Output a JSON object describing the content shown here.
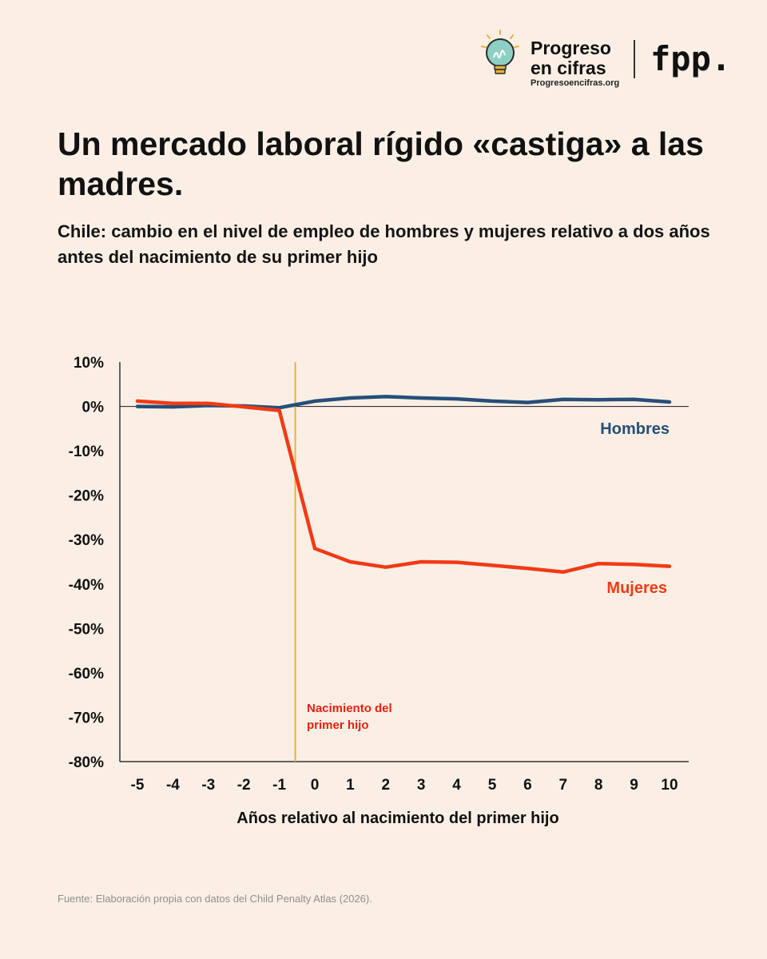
{
  "brand": {
    "name_line1": "Progreso",
    "name_line2": "en cifras",
    "url": "Progresoencifras.org",
    "partner_logo": "fpp."
  },
  "title": "Un mercado laboral rígido «castiga» a las madres.",
  "subtitle": "Chile: cambio en el nivel de empleo de hombres y mujeres relativo a dos años antes del nacimiento de su primer hijo",
  "source": "Fuente: Elaboración propia con datos del Child Penalty Atlas (2026).",
  "colors": {
    "background": "#FBEFE5",
    "hombres": "#264F78",
    "mujeres": "#F23A15",
    "event_line": "#E8B23A",
    "event_label": "#E8200E"
  },
  "icons": [
    "lightbulb-icon"
  ],
  "chart_data": {
    "type": "line",
    "title": "Chile: cambio en el nivel de empleo de hombres y mujeres relativo a dos años antes del nacimiento de su primer hijo",
    "xlabel": "Años relativo al nacimiento del primer hijo",
    "ylabel": "",
    "x": [
      -5,
      -4,
      -3,
      -2,
      -1,
      0,
      1,
      2,
      3,
      4,
      5,
      6,
      7,
      8,
      9,
      10
    ],
    "xtick_labels": [
      "-5",
      "-4",
      "-3",
      "-2",
      "-1",
      "0",
      "1",
      "2",
      "3",
      "4",
      "5",
      "6",
      "7",
      "8",
      "9",
      "10"
    ],
    "ylim": [
      -80,
      10
    ],
    "yticks": [
      10,
      0,
      -10,
      -20,
      -30,
      -40,
      -50,
      -60,
      -70,
      -80
    ],
    "ytick_labels": [
      "10%",
      "0%",
      "-10%",
      "-20%",
      "-30%",
      "-40%",
      "-50%",
      "-60%",
      "-70%",
      "-80%"
    ],
    "grid": false,
    "legend": "inline labels at right end of lines",
    "series": [
      {
        "name": "Hombres",
        "color": "#264F78",
        "values": [
          0.0,
          -0.1,
          0.2,
          0.1,
          -0.3,
          1.2,
          1.9,
          2.2,
          1.9,
          1.7,
          1.2,
          0.9,
          1.6,
          1.5,
          1.6,
          1.0
        ]
      },
      {
        "name": "Mujeres",
        "color": "#F23A15",
        "values": [
          1.2,
          0.7,
          0.7,
          -0.1,
          -0.9,
          -32.0,
          -35.0,
          -36.2,
          -35.0,
          -35.1,
          -35.8,
          -36.5,
          -37.3,
          -35.4,
          -35.6,
          -36.0
        ]
      }
    ],
    "event_marker": {
      "x": -0.55,
      "label_line1": "Nacimiento del",
      "label_line2": "primer hijo"
    }
  }
}
